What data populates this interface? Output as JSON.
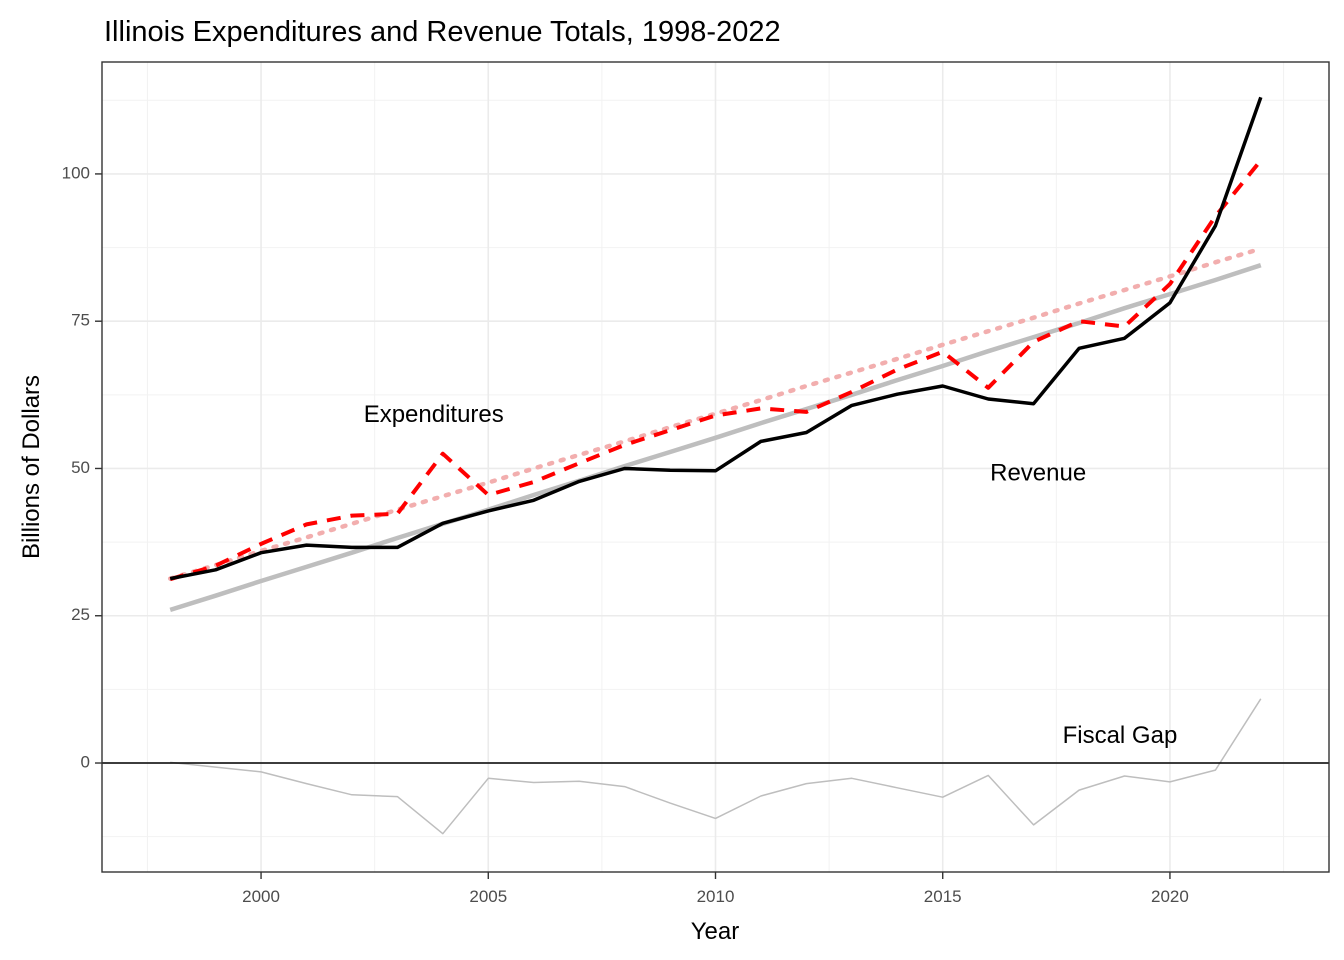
{
  "chart_data": {
    "type": "line",
    "title": "Illinois Expenditures and Revenue Totals, 1998-2022",
    "xlabel": "Year",
    "ylabel": "Billions of Dollars",
    "xlim": [
      1996.5,
      2023.5
    ],
    "ylim": [
      -18.5,
      119
    ],
    "x_ticks": [
      2000,
      2005,
      2010,
      2015,
      2020
    ],
    "y_ticks": [
      0,
      25,
      50,
      75,
      100
    ],
    "grid": true,
    "x": [
      1998,
      1999,
      2000,
      2001,
      2002,
      2003,
      2004,
      2005,
      2006,
      2007,
      2008,
      2009,
      2010,
      2011,
      2012,
      2013,
      2014,
      2015,
      2016,
      2017,
      2018,
      2019,
      2020,
      2021,
      2022
    ],
    "series": [
      {
        "key": "expenditures",
        "style": "dashed",
        "color": "#ff0000",
        "values": [
          31.2,
          33.5,
          37.2,
          40.5,
          42.0,
          42.3,
          52.5,
          45.5,
          47.7,
          50.9,
          54.0,
          56.5,
          59.0,
          60.2,
          59.6,
          63.0,
          66.8,
          69.8,
          63.7,
          71.5,
          75.0,
          74.1,
          81.3,
          92.8,
          102.3
        ]
      },
      {
        "key": "revenue",
        "style": "solid",
        "color": "#000000",
        "values": [
          31.3,
          32.8,
          35.7,
          37.0,
          36.6,
          36.6,
          40.7,
          42.8,
          44.6,
          47.8,
          50.0,
          49.7,
          49.6,
          54.6,
          56.1,
          60.7,
          62.6,
          64.0,
          61.8,
          61.0,
          70.4,
          72.1,
          78.1,
          91.2,
          113.0
        ]
      },
      {
        "key": "expenditures_trend",
        "style": "dotted",
        "color": "#f2aeae",
        "values": [
          31.3,
          33.6,
          36.0,
          38.3,
          40.6,
          43.0,
          45.3,
          47.6,
          50.0,
          52.3,
          54.6,
          57.0,
          59.3,
          61.6,
          64.0,
          66.3,
          68.6,
          71.0,
          73.3,
          75.6,
          78.0,
          80.3,
          82.6,
          85.0,
          87.3
        ]
      },
      {
        "key": "revenue_trend",
        "style": "solid",
        "color": "#bebebe",
        "values": [
          26.0,
          28.4,
          30.9,
          33.3,
          35.7,
          38.2,
          40.6,
          43.0,
          45.5,
          47.9,
          50.4,
          52.8,
          55.2,
          57.7,
          60.1,
          62.5,
          65.0,
          67.4,
          69.9,
          72.3,
          74.7,
          77.2,
          79.6,
          82.0,
          84.5
        ]
      },
      {
        "key": "fiscal_gap",
        "style": "thin",
        "color": "#bebebe",
        "values": [
          0.1,
          -0.7,
          -1.5,
          -3.5,
          -5.4,
          -5.7,
          -12.0,
          -2.6,
          -3.3,
          -3.1,
          -4.0,
          -6.8,
          -9.4,
          -5.6,
          -3.5,
          -2.6,
          -4.2,
          -5.8,
          -2.1,
          -10.5,
          -4.6,
          -2.2,
          -3.2,
          -1.2,
          10.9
        ]
      }
    ],
    "annotations": [
      {
        "text": "Expenditures",
        "x": 2003.8,
        "y": 59
      },
      {
        "text": "Revenue",
        "x": 2017.1,
        "y": 49
      },
      {
        "text": "Fiscal Gap",
        "x": 2018.9,
        "y": 4.5
      }
    ],
    "hline": {
      "y": 0,
      "color": "#000000"
    }
  }
}
